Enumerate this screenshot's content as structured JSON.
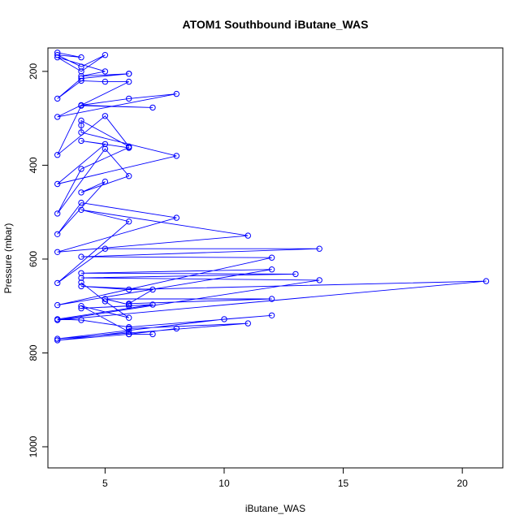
{
  "chart_data": {
    "type": "line",
    "title": "ATOM1 Southbound iButane_WAS",
    "xlabel": "iButane_WAS",
    "ylabel": "Pressure (mbar)",
    "xlim": [
      2.6,
      21.7
    ],
    "ylim": [
      1045,
      150
    ],
    "y_reversed": true,
    "xticks": [
      5,
      10,
      15,
      20
    ],
    "yticks": [
      200,
      400,
      600,
      800,
      1000
    ],
    "grid": false,
    "series_color": "#0000ff",
    "x": [
      3,
      4,
      3,
      4,
      5,
      4,
      3,
      5,
      4,
      6,
      6,
      4,
      3,
      4,
      5,
      6,
      3,
      8,
      6,
      4,
      7,
      4,
      3,
      5,
      6,
      4,
      4,
      4,
      8,
      3,
      5,
      4,
      6,
      6,
      4,
      3,
      5,
      6,
      4,
      5,
      3,
      4,
      8,
      3,
      11,
      4,
      6,
      3,
      5,
      14,
      4,
      12,
      3,
      12,
      4,
      13,
      4,
      14,
      3,
      21,
      6,
      4,
      7,
      6,
      12,
      5,
      6,
      6,
      4,
      7,
      3,
      4,
      6,
      12,
      10,
      3,
      11,
      6,
      6,
      8,
      6,
      7,
      6,
      3,
      6,
      4,
      6,
      5,
      4
    ],
    "y": [
      160,
      170,
      165,
      190,
      165,
      200,
      170,
      200,
      210,
      205,
      205,
      215,
      258,
      220,
      222,
      222,
      297,
      248,
      258,
      272,
      277,
      273,
      378,
      295,
      360,
      305,
      315,
      330,
      380,
      440,
      355,
      348,
      363,
      362,
      408,
      503,
      365,
      423,
      458,
      435,
      547,
      480,
      512,
      585,
      550,
      495,
      520,
      651,
      578,
      578,
      595,
      597,
      698,
      622,
      630,
      632,
      640,
      645,
      730,
      647,
      665,
      658,
      665,
      695,
      685,
      685,
      697,
      700,
      705,
      697,
      728,
      730,
      745,
      720,
      728,
      770,
      737,
      748,
      760,
      748,
      760,
      760,
      760,
      773,
      755,
      700,
      725,
      690,
      650
    ]
  }
}
